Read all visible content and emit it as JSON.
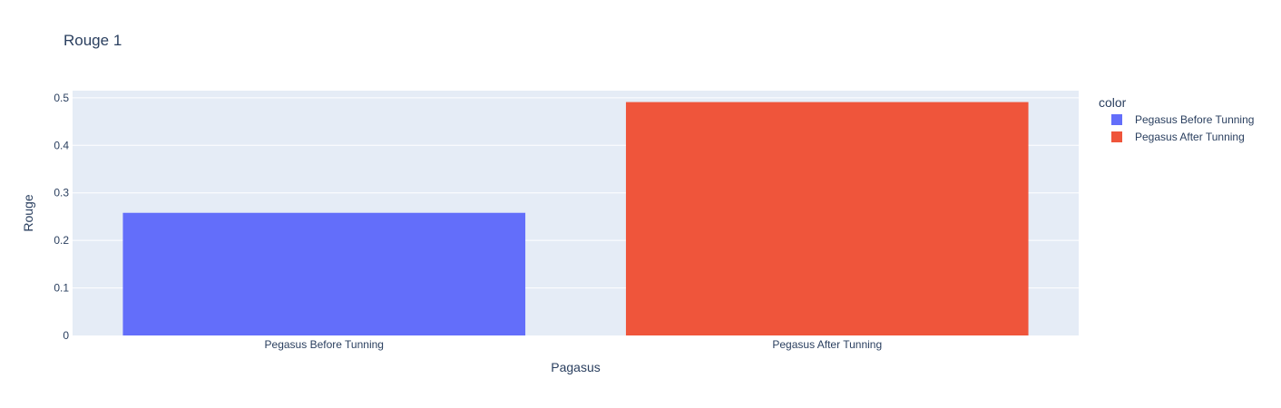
{
  "chart_data": {
    "type": "bar",
    "title": "Rouge 1",
    "xlabel": "Pagasus",
    "ylabel": "Rouge",
    "categories": [
      "Pegasus Before Tunning",
      "Pegasus After Tunning"
    ],
    "values": [
      0.258,
      0.491
    ],
    "colors": [
      "#636efa",
      "#ef553b"
    ],
    "ylim": [
      0,
      0.515
    ],
    "yticks": [
      0,
      0.1,
      0.2,
      0.3,
      0.4,
      0.5
    ],
    "ytick_labels": [
      "0",
      "0.1",
      "0.2",
      "0.3",
      "0.4",
      "0.5"
    ],
    "grid": true,
    "legend": {
      "title": "color",
      "position": "right",
      "entries": [
        "Pegasus Before Tunning",
        "Pegasus After Tunning"
      ]
    }
  },
  "style": {
    "plot_background": "#e5ecf6",
    "grid_color": "#ffffff",
    "text_color": "#2a3f5f"
  }
}
